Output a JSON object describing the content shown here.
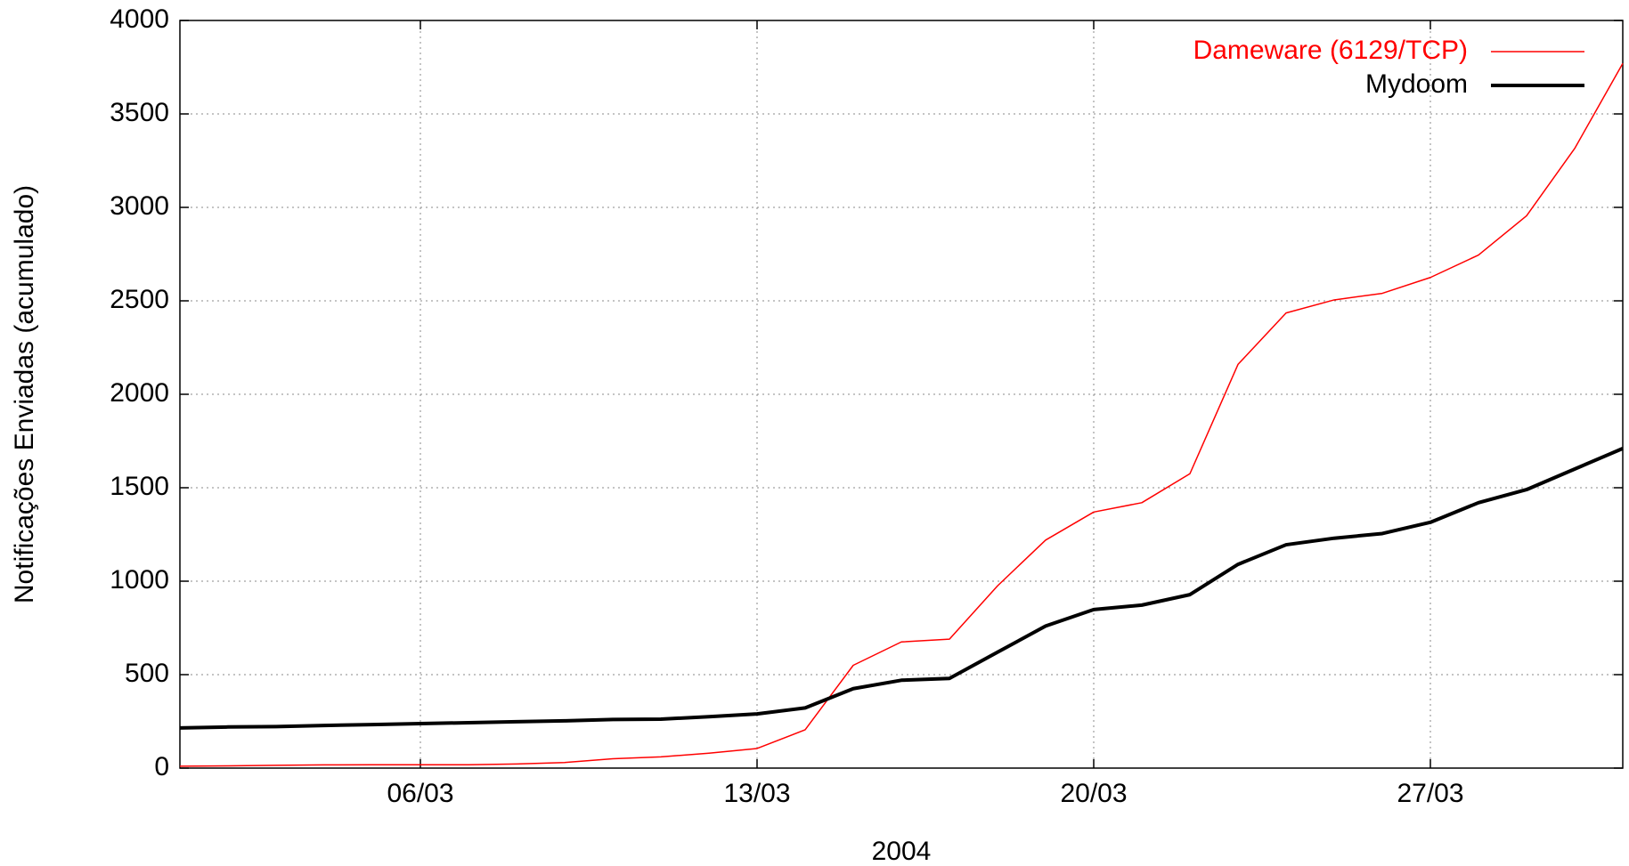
{
  "chart_data": {
    "type": "line",
    "xlabel": "2004",
    "ylabel": "Notificações Enviadas (acumulado)",
    "x": [
      1,
      2,
      3,
      4,
      5,
      6,
      7,
      8,
      9,
      10,
      11,
      12,
      13,
      14,
      15,
      16,
      17,
      18,
      19,
      20,
      21,
      22,
      23,
      24,
      25,
      26,
      27,
      28,
      29,
      30,
      31
    ],
    "series": [
      {
        "name": "Dameware (6129/TCP)",
        "color": "#ff0000",
        "width": 1.5,
        "values": [
          10,
          12,
          15,
          17,
          18,
          18,
          18,
          22,
          30,
          50,
          60,
          80,
          105,
          205,
          550,
          675,
          690,
          975,
          1220,
          1370,
          1420,
          1575,
          2160,
          2435,
          2505,
          2540,
          2625,
          2745,
          2955,
          3315,
          3770
        ]
      },
      {
        "name": "Mydoom",
        "color": "#000000",
        "width": 4,
        "values": [
          215,
          220,
          222,
          228,
          233,
          238,
          243,
          248,
          253,
          260,
          262,
          275,
          290,
          322,
          425,
          470,
          480,
          620,
          760,
          848,
          872,
          928,
          1090,
          1195,
          1230,
          1255,
          1315,
          1420,
          1490,
          1600,
          1710
        ]
      }
    ],
    "xlim": [
      1,
      31
    ],
    "xticks": [
      {
        "value": 6,
        "label": "06/03"
      },
      {
        "value": 13,
        "label": "13/03"
      },
      {
        "value": 20,
        "label": "20/03"
      },
      {
        "value": 27,
        "label": "27/03"
      }
    ],
    "ylim": [
      0,
      4000
    ],
    "yticks": [
      0,
      500,
      1000,
      1500,
      2000,
      2500,
      3000,
      3500,
      4000
    ],
    "grid": true,
    "legend": "top-right"
  }
}
